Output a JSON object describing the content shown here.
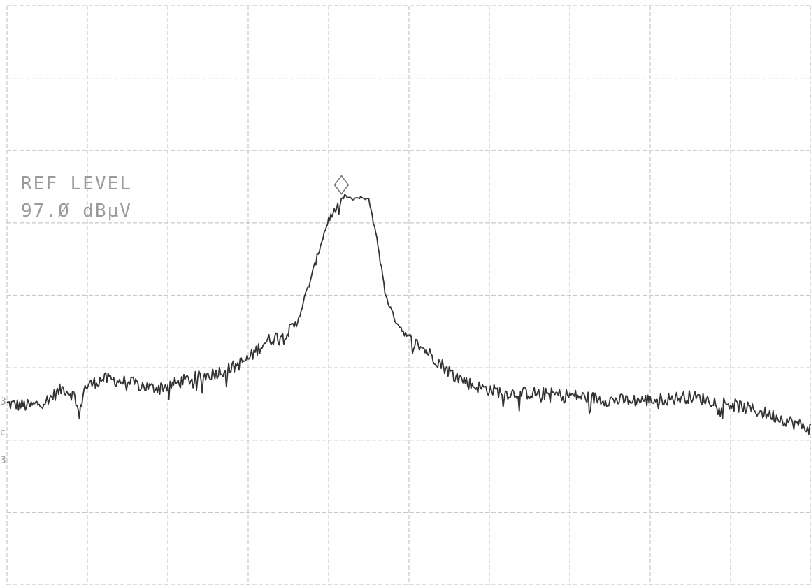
{
  "reference": {
    "label": "REF LEVEL",
    "value": "97.Ø dBµV"
  },
  "chart_data": {
    "type": "line",
    "title": "",
    "xlabel": "",
    "ylabel": "",
    "grid": true,
    "grid_divisions": {
      "x": 10,
      "y": 8
    },
    "xlim": [
      0,
      10
    ],
    "ylim": [
      0,
      8
    ],
    "marker": {
      "shape": "diamond",
      "x": 4.16,
      "y": 5.38
    },
    "series": [
      {
        "color": "#333333",
        "x": [
          0,
          0.3,
          0.5,
          0.7,
          0.85,
          0.9,
          0.95,
          1.0,
          1.2,
          1.5,
          1.8,
          2.0,
          2.2,
          2.5,
          2.8,
          3.0,
          3.2,
          3.5,
          3.6,
          3.7,
          3.8,
          3.9,
          4.0,
          4.1,
          4.2,
          4.3,
          4.4,
          4.5,
          4.6,
          4.7,
          4.8,
          4.9,
          5.0,
          5.2,
          5.5,
          5.8,
          6.0,
          6.2,
          6.5,
          7.0,
          7.5,
          8.0,
          8.5,
          9.0,
          9.5,
          10.0
        ],
        "y": [
          2.5,
          2.47,
          2.55,
          2.72,
          2.6,
          2.3,
          2.7,
          2.75,
          2.85,
          2.8,
          2.72,
          2.75,
          2.82,
          2.9,
          3.0,
          3.12,
          3.35,
          3.5,
          3.6,
          3.95,
          4.3,
          4.7,
          5.05,
          5.2,
          5.38,
          5.32,
          5.35,
          5.32,
          4.8,
          4.05,
          3.72,
          3.55,
          3.4,
          3.25,
          2.95,
          2.75,
          2.7,
          2.65,
          2.65,
          2.62,
          2.55,
          2.55,
          2.6,
          2.5,
          2.35,
          2.15
        ]
      }
    ]
  }
}
